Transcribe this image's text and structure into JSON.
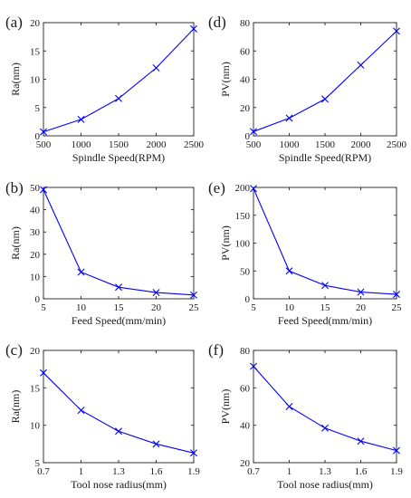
{
  "colors": {
    "series": "#0000ff",
    "axis": "#222222"
  },
  "chart_data": [
    {
      "label": "(a)",
      "type": "line",
      "xlabel": "Spindle Speed(RPM)",
      "ylabel": "Ra(nm)",
      "xlim": [
        500,
        2500
      ],
      "ylim": [
        0,
        20
      ],
      "xticks": [
        500,
        1000,
        1500,
        2000,
        2500
      ],
      "yticks": [
        0,
        5,
        10,
        15,
        20
      ],
      "marker": "x",
      "x": [
        500,
        1000,
        1500,
        2000,
        2500
      ],
      "y": [
        0.7,
        2.9,
        6.6,
        12.0,
        18.9
      ]
    },
    {
      "label": "(d)",
      "type": "line",
      "xlabel": "Spindle Speed(RPM)",
      "ylabel": "PV(nm)",
      "xlim": [
        500,
        2500
      ],
      "ylim": [
        0,
        80
      ],
      "xticks": [
        500,
        1000,
        1500,
        2000,
        2500
      ],
      "yticks": [
        0,
        20,
        40,
        60,
        80
      ],
      "marker": "x",
      "x": [
        500,
        1000,
        1500,
        2000,
        2500
      ],
      "y": [
        3,
        12.5,
        26,
        50,
        74
      ]
    },
    {
      "label": "(b)",
      "type": "line",
      "xlabel": "Feed Speed(mm/min)",
      "ylabel": "Ra(nm)",
      "xlim": [
        5,
        25
      ],
      "ylim": [
        0,
        50
      ],
      "xticks": [
        5,
        10,
        15,
        20,
        25
      ],
      "yticks": [
        0,
        10,
        20,
        30,
        40,
        50
      ],
      "marker": "x",
      "x": [
        5,
        10,
        15,
        20,
        25
      ],
      "y": [
        49,
        12,
        5.2,
        2.8,
        1.7
      ]
    },
    {
      "label": "(e)",
      "type": "line",
      "xlabel": "Feed Speed(mm/min)",
      "ylabel": "PV(nm)",
      "xlim": [
        5,
        25
      ],
      "ylim": [
        0,
        200
      ],
      "xticks": [
        5,
        10,
        15,
        20,
        25
      ],
      "yticks": [
        0,
        50,
        100,
        150,
        200
      ],
      "marker": "x",
      "x": [
        5,
        10,
        15,
        20,
        25
      ],
      "y": [
        198,
        50,
        24,
        12,
        8
      ]
    },
    {
      "label": "(c)",
      "type": "line",
      "xlabel": "Tool nose radius(mm)",
      "ylabel": "Ra(nm)",
      "xlim": [
        0.7,
        1.9
      ],
      "ylim": [
        5,
        20
      ],
      "xticks": [
        0.7,
        1,
        1.3,
        1.6,
        1.9
      ],
      "yticks": [
        5,
        10,
        15,
        20
      ],
      "marker": "x",
      "x": [
        0.7,
        1.0,
        1.3,
        1.6,
        1.9
      ],
      "y": [
        17.0,
        12.0,
        9.2,
        7.5,
        6.3
      ]
    },
    {
      "label": "(f)",
      "type": "line",
      "xlabel": "Tool nose radius(mm)",
      "ylabel": "PV(nm)",
      "xlim": [
        0.7,
        1.9
      ],
      "ylim": [
        20,
        80
      ],
      "xticks": [
        0.7,
        1,
        1.3,
        1.6,
        1.9
      ],
      "yticks": [
        20,
        40,
        60,
        80
      ],
      "marker": "x",
      "x": [
        0.7,
        1.0,
        1.3,
        1.6,
        1.9
      ],
      "y": [
        71.5,
        50,
        38.5,
        31.5,
        26.5
      ]
    }
  ]
}
